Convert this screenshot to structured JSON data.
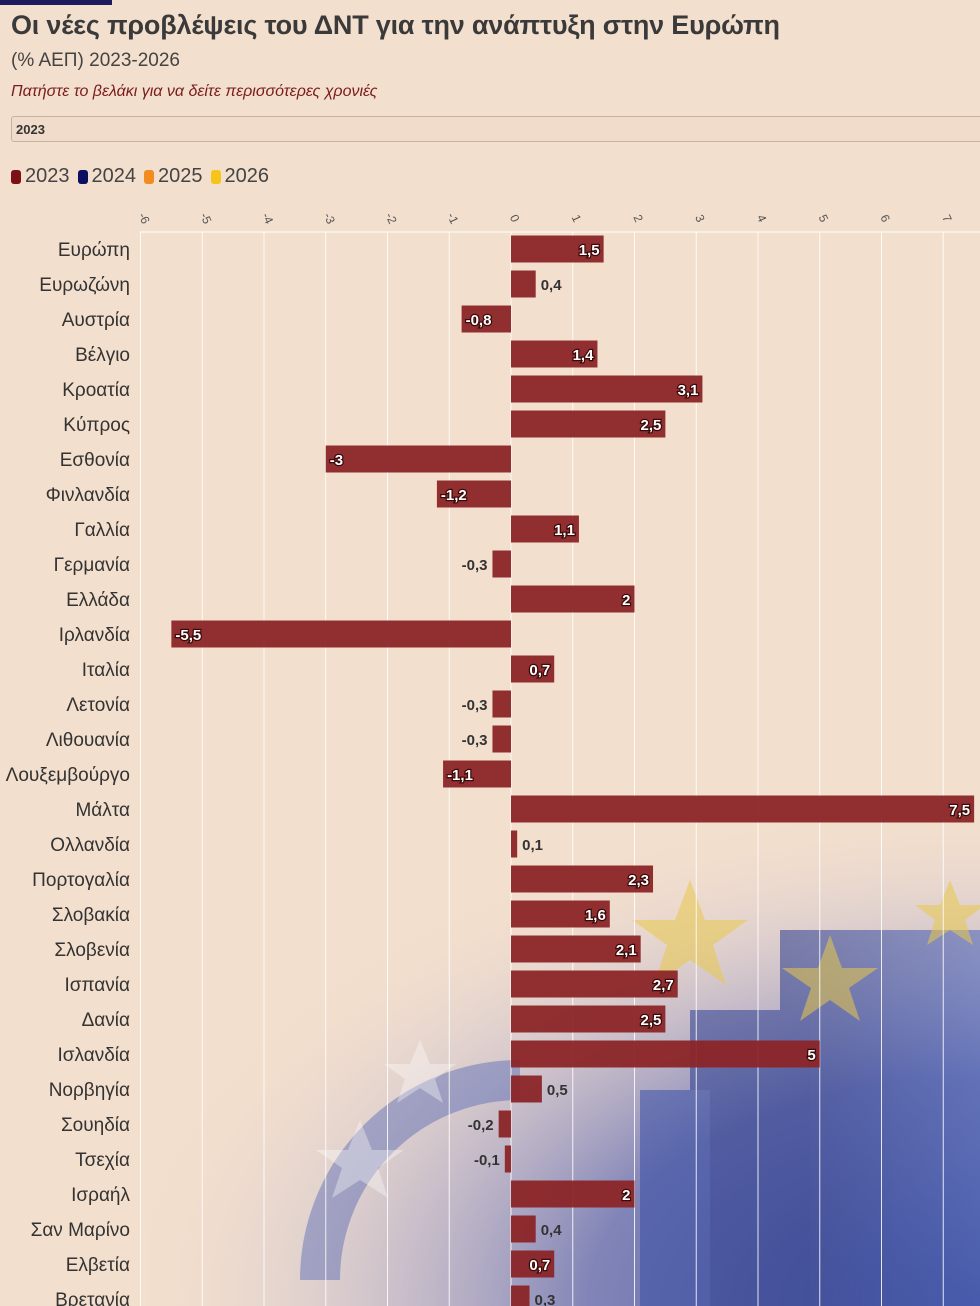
{
  "header": {
    "title": "Οι νέες προβλέψεις του ΔΝΤ για την ανάπτυξη στην Ευρώπη",
    "subtitle": "(% ΑΕΠ) 2023-2026",
    "hint": "Πατήστε το βελάκι για να δείτε περισσότερες χρονιές"
  },
  "year_control": {
    "value": "2023"
  },
  "colors": {
    "bar": "#8b2527",
    "legend": [
      "#7a1116",
      "#0b1060",
      "#f28c1e",
      "#f5c51b"
    ]
  },
  "legend": [
    {
      "label": "2023"
    },
    {
      "label": "2024"
    },
    {
      "label": "2025"
    },
    {
      "label": "2026"
    }
  ],
  "chart_data": {
    "type": "bar",
    "orientation": "horizontal",
    "xlim": [
      -6,
      7.6
    ],
    "x_ticks": [
      "-6",
      "-5",
      "-4",
      "-3",
      "-2",
      "-1",
      "0",
      "1",
      "2",
      "3",
      "4",
      "5",
      "6",
      "7"
    ],
    "categories": [
      "Ευρώπη",
      "Ευρωζώνη",
      "Αυστρία",
      "Βέλγιο",
      "Κροατία",
      "Κύπρος",
      "Εσθονία",
      "Φινλανδία",
      "Γαλλία",
      "Γερμανία",
      "Ελλάδα",
      "Ιρλανδία",
      "Ιταλία",
      "Λετονία",
      "Λιθουανία",
      "Λουξεμβούργο",
      "Μάλτα",
      "Ολλανδία",
      "Πορτογαλία",
      "Σλοβακία",
      "Σλοβενία",
      "Ισπανία",
      "Δανία",
      "Ισλανδία",
      "Νορβηγία",
      "Σουηδία",
      "Τσεχία",
      "Ισραήλ",
      "Σαν Μαρίνο",
      "Ελβετία",
      "Βρετανία"
    ],
    "values": [
      1.5,
      0.4,
      -0.8,
      1.4,
      3.1,
      2.5,
      -3,
      -1.2,
      1.1,
      -0.3,
      2,
      -5.5,
      0.7,
      -0.3,
      -0.3,
      -1.1,
      7.5,
      0.1,
      2.3,
      1.6,
      2.1,
      2.7,
      2.5,
      5,
      0.5,
      -0.2,
      -0.1,
      2,
      0.4,
      0.7,
      0.3
    ],
    "labels": [
      "1,5",
      "0,4",
      "-0,8",
      "1,4",
      "3,1",
      "2,5",
      "-3",
      "-1,2",
      "1,1",
      "-0,3",
      "2",
      "-5,5",
      "0,7",
      "-0,3",
      "-0,3",
      "-1,1",
      "7,5",
      "0,1",
      "2,3",
      "1,6",
      "2,1",
      "2,7",
      "2,5",
      "5",
      "0,5",
      "-0,2",
      "-0,1",
      "2",
      "0,4",
      "0,7",
      "0,3"
    ],
    "series": [
      {
        "name": "2023"
      }
    ],
    "grid": true,
    "legend_position": "top-left"
  }
}
